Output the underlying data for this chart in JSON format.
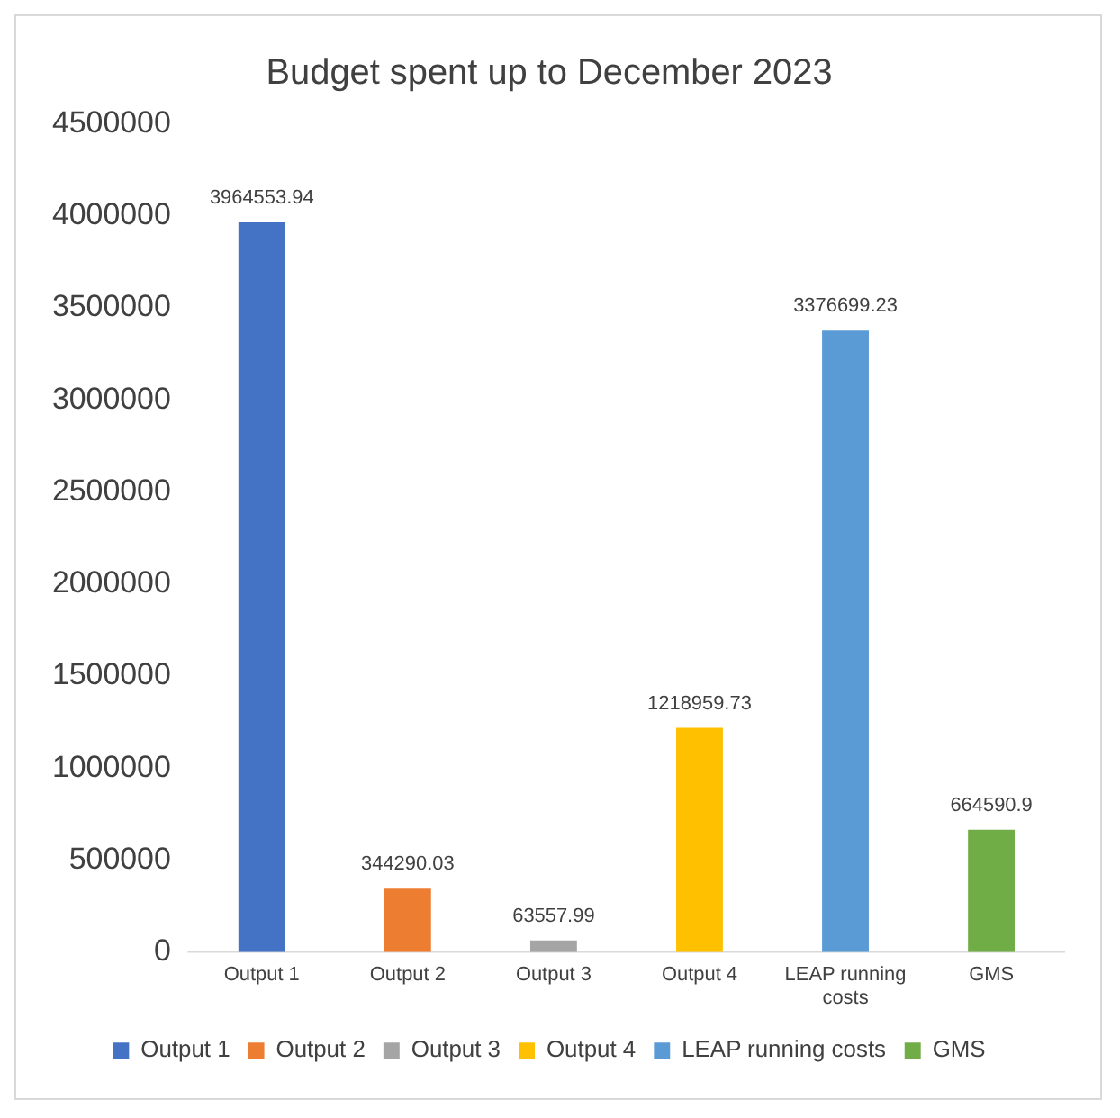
{
  "chart_data": {
    "type": "bar",
    "title": "Budget spent up to December 2023",
    "categories": [
      "Output 1",
      "Output 2",
      "Output 3",
      "Output 4",
      "LEAP running costs",
      "GMS"
    ],
    "series": [
      {
        "name": "Output 1",
        "color": "#4472c4",
        "values": [
          3964553.94,
          null,
          null,
          null,
          null,
          null
        ]
      },
      {
        "name": "Output 2",
        "color": "#ed7d31",
        "values": [
          null,
          344290.03,
          null,
          null,
          null,
          null
        ]
      },
      {
        "name": "Output 3",
        "color": "#a5a5a5",
        "values": [
          null,
          null,
          63557.99,
          null,
          null,
          null
        ]
      },
      {
        "name": "Output 4",
        "color": "#ffc000",
        "values": [
          null,
          null,
          null,
          1218959.73,
          null,
          null
        ]
      },
      {
        "name": "LEAP running costs",
        "color": "#5b9bd5",
        "values": [
          null,
          null,
          null,
          null,
          3376699.23,
          null
        ]
      },
      {
        "name": "GMS",
        "color": "#70ad47",
        "values": [
          null,
          null,
          null,
          null,
          null,
          664590.9
        ]
      }
    ],
    "ylim": [
      0,
      4500000
    ],
    "yticks": [
      0,
      500000,
      1000000,
      1500000,
      2000000,
      2500000,
      3000000,
      3500000,
      4000000,
      4500000
    ],
    "grid": false,
    "legend": "bottom",
    "data_labels": true
  }
}
